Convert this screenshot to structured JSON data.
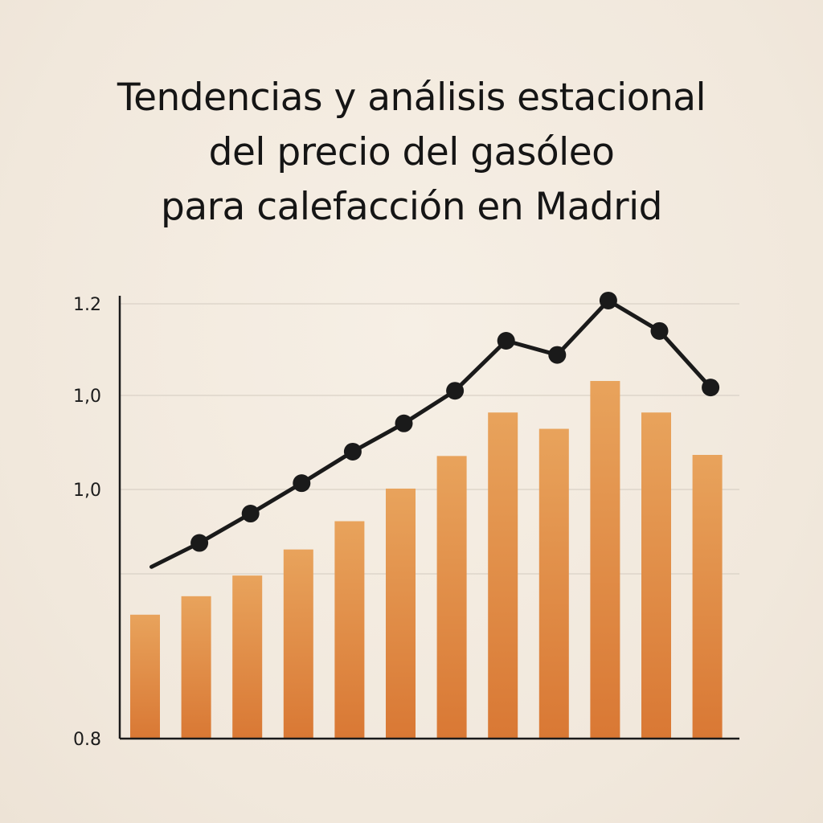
{
  "colors": {
    "background": "#f3ebe0",
    "bar_top": "#e8a35c",
    "bar_bottom": "#d97834",
    "line": "#1a1a1a",
    "grid": "#d9d1c6",
    "axis": "#1a1a1a"
  },
  "chart_data": {
    "type": "bar",
    "title": "Tendencias y análisis estacional del precio del gasóleo para calefacción en Madrid",
    "title_lines": [
      "Tendencias y análisis estacional",
      "del precio del gasóleo",
      "para calefacción en Madrid"
    ],
    "xlabel": "",
    "ylabel": "",
    "y_tick_labels": [
      "1.2",
      "1,0",
      "1,0",
      "0.8"
    ],
    "ylim": [
      0.8,
      1.2
    ],
    "grid": true,
    "legend": "none",
    "series": [
      {
        "kind": "bar",
        "values": [
          0.914,
          0.931,
          0.95,
          0.974,
          1.0,
          1.03,
          1.06,
          1.1,
          1.085,
          1.129,
          1.1,
          1.061
        ]
      },
      {
        "kind": "line",
        "values": [
          0.958,
          0.98,
          1.007,
          1.035,
          1.064,
          1.09,
          1.12,
          1.166,
          1.153,
          1.203,
          1.175,
          1.123
        ]
      }
    ]
  }
}
